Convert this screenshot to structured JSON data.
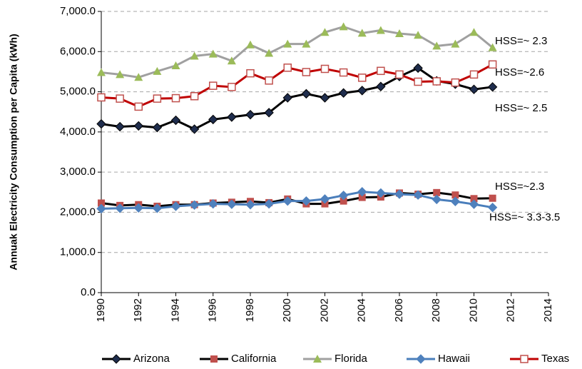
{
  "chart_data": {
    "type": "line",
    "y_label": "Annuak Electricity Consumption per Capita (kWh)",
    "x": [
      1990,
      1991,
      1992,
      1993,
      1994,
      1995,
      1996,
      1997,
      1998,
      1999,
      2000,
      2001,
      2002,
      2003,
      2004,
      2005,
      2006,
      2007,
      2008,
      2009,
      2010,
      2011
    ],
    "series": [
      {
        "name": "Arizona",
        "color": "#000000",
        "marker_color": "#1f2d4d",
        "marker": "diamond",
        "values": [
          4200,
          4130,
          4150,
          4110,
          4290,
          4070,
          4310,
          4370,
          4430,
          4480,
          4850,
          4950,
          4850,
          4970,
          5030,
          5130,
          5380,
          5590,
          5270,
          5190,
          5060,
          5120
        ]
      },
      {
        "name": "California",
        "color": "#000000",
        "marker_color": "#c0504d",
        "marker": "square",
        "values": [
          2230,
          2170,
          2190,
          2150,
          2190,
          2190,
          2230,
          2250,
          2270,
          2240,
          2330,
          2210,
          2210,
          2280,
          2370,
          2380,
          2480,
          2450,
          2490,
          2430,
          2340,
          2350
        ]
      },
      {
        "name": "Florida",
        "color": "#a0a0a0",
        "marker_color": "#9bbb59",
        "marker": "triangle",
        "values": [
          5480,
          5430,
          5360,
          5510,
          5650,
          5890,
          5940,
          5770,
          6170,
          5960,
          6190,
          6190,
          6480,
          6620,
          6460,
          6530,
          6450,
          6410,
          6140,
          6190,
          6480,
          6100
        ]
      },
      {
        "name": "Hawaii",
        "color": "#4a7ebb",
        "marker_color": "#4f81bd",
        "marker": "diamond",
        "values": [
          2090,
          2100,
          2110,
          2100,
          2150,
          2180,
          2210,
          2200,
          2190,
          2210,
          2280,
          2280,
          2330,
          2420,
          2510,
          2480,
          2450,
          2430,
          2320,
          2270,
          2200,
          2120
        ]
      },
      {
        "name": "Texas",
        "color": "#c00000",
        "marker_color": "#c0504d",
        "marker": "square-open",
        "values": [
          4860,
          4830,
          4630,
          4830,
          4840,
          4890,
          5150,
          5120,
          5460,
          5280,
          5600,
          5490,
          5570,
          5480,
          5350,
          5520,
          5430,
          5250,
          5260,
          5230,
          5430,
          5680
        ]
      }
    ],
    "xlim": [
      1990,
      2014
    ],
    "xticks": [
      1990,
      1992,
      1994,
      1996,
      1998,
      2000,
      2002,
      2004,
      2006,
      2008,
      2010,
      2012,
      2014
    ],
    "ylim": [
      0,
      7000
    ],
    "yticks": [
      {
        "value": 0,
        "label": "0.0"
      },
      {
        "value": 1000,
        "label": "1,000.0"
      },
      {
        "value": 2000,
        "label": "2,000.0"
      },
      {
        "value": 3000,
        "label": "3,000.0"
      },
      {
        "value": 4000,
        "label": "4,000.0"
      },
      {
        "value": 5000,
        "label": "5,000.0"
      },
      {
        "value": 6000,
        "label": "6,000.0"
      },
      {
        "value": 7000,
        "label": "7,000.0"
      }
    ],
    "grid": true,
    "legend": "bottom",
    "annotations": [
      "HSS=~ 2.3",
      "HSS=~2.6",
      "HSS=~ 2.5",
      "HSS=~2.3",
      "HSS=~ 3.3-3.5"
    ]
  }
}
